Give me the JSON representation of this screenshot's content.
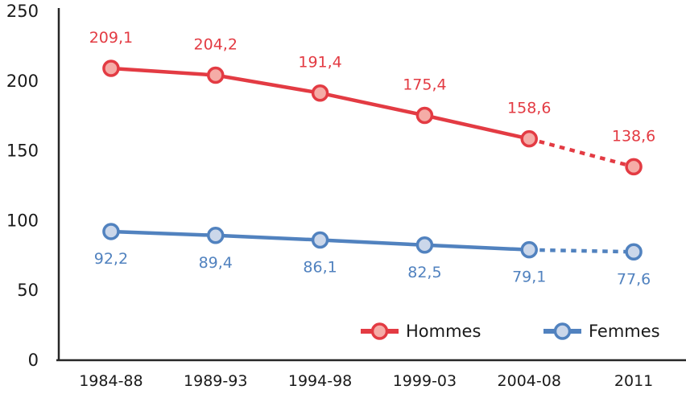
{
  "chart_data": {
    "type": "line",
    "title": "",
    "xlabel": "",
    "ylabel": "",
    "categories": [
      "1984-88",
      "1989-93",
      "1994-98",
      "1999-03",
      "2004-08",
      "2011"
    ],
    "series": [
      {
        "name": "Hommes",
        "values": [
          209.1,
          204.2,
          191.4,
          175.4,
          158.6,
          138.6
        ],
        "labels": [
          "209,1",
          "204,2",
          "191,4",
          "175,4",
          "158,6",
          "138,6"
        ],
        "color": "#E33B43",
        "marker_fill": "#F5ACA7",
        "dashed_from_index": 4,
        "label_position": "above"
      },
      {
        "name": "Femmes",
        "values": [
          92.2,
          89.4,
          86.1,
          82.5,
          79.1,
          77.6
        ],
        "labels": [
          "92,2",
          "89,4",
          "86,1",
          "82,5",
          "79,1",
          "77,6"
        ],
        "color": "#5182BF",
        "marker_fill": "#CBD7EA",
        "dashed_from_index": 4,
        "label_position": "below"
      }
    ],
    "ylim": [
      0,
      250
    ],
    "yticks": [
      0,
      50,
      100,
      150,
      200,
      250
    ],
    "grid": false,
    "legend_position": "bottom-inside",
    "axis_color": "#262626",
    "text_color": "#1a1a1a"
  }
}
